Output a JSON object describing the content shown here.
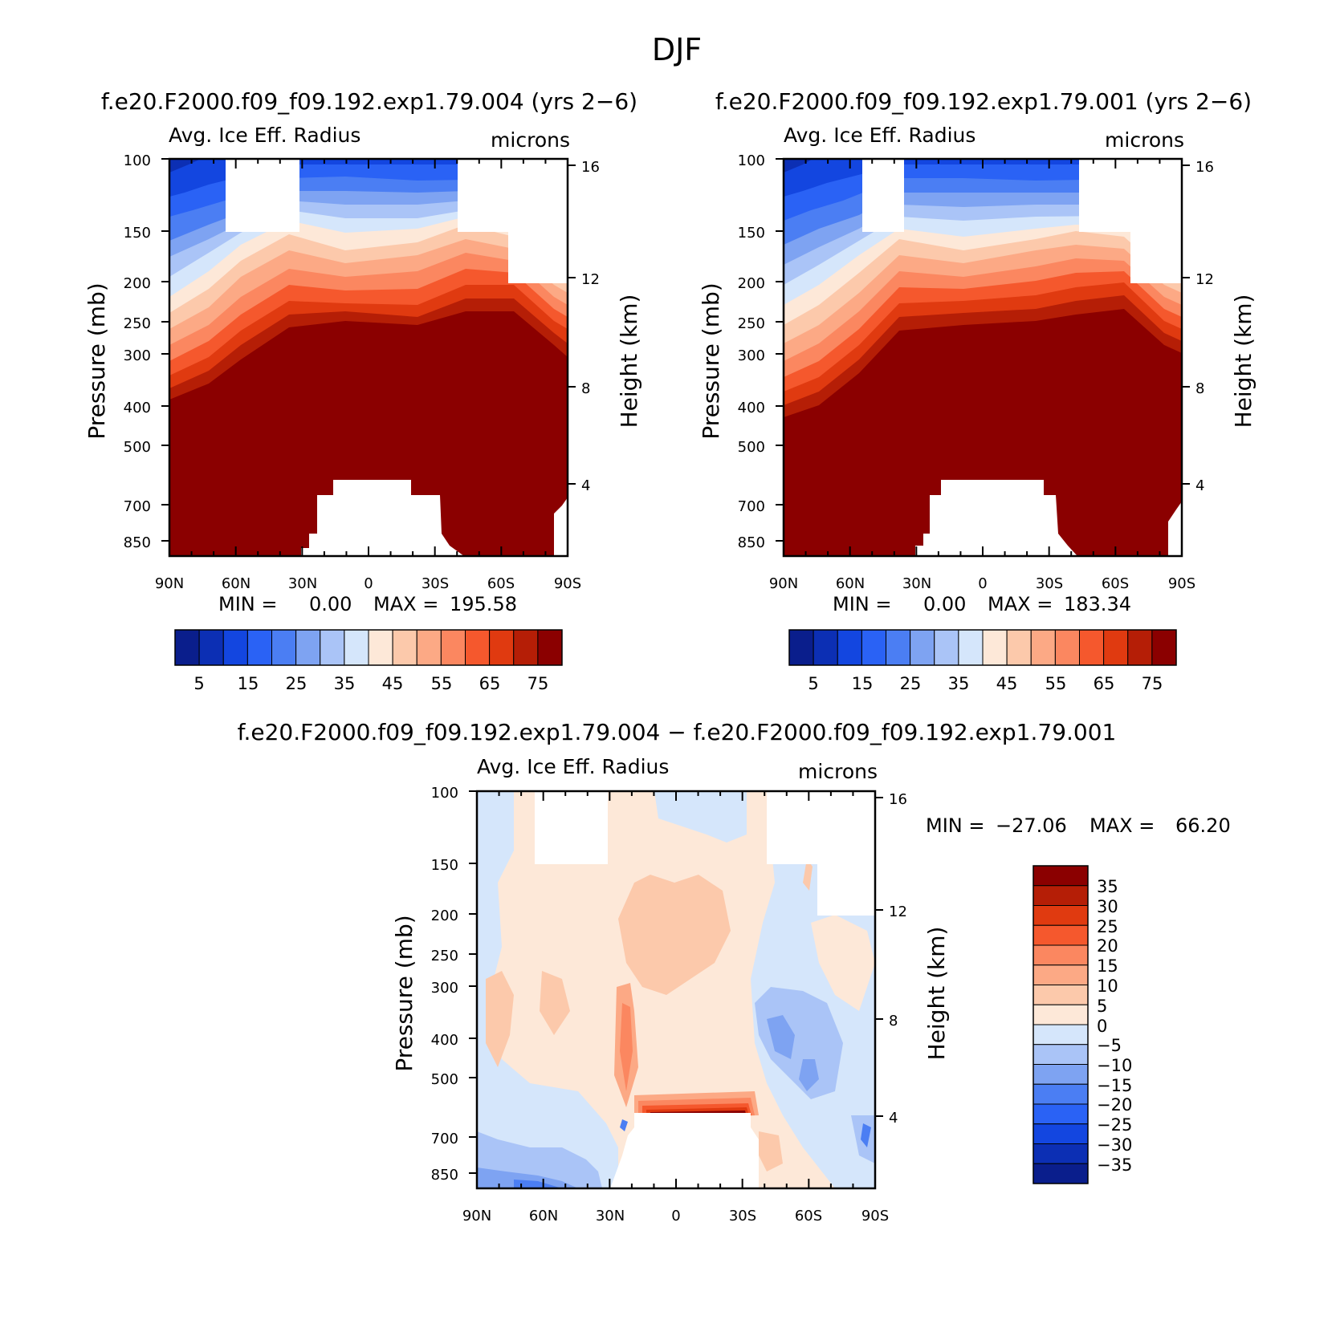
{
  "title": "DJF",
  "colors": {
    "abs_palette": [
      "#0a1e8c",
      "#0c2fb4",
      "#1346e0",
      "#2a62f5",
      "#4b7ef3",
      "#7ea3f2",
      "#aac4f7",
      "#d5e6fb",
      "#fde8d8",
      "#fcc9ab",
      "#fca985",
      "#fb8760",
      "#f5582d",
      "#e03a10",
      "#b51e06",
      "#8b0000"
    ],
    "diff_palette": [
      "#0a1e8c",
      "#0c2fb4",
      "#1346e0",
      "#2a62f5",
      "#4b7ef3",
      "#7ea3f2",
      "#aac4f7",
      "#d5e6fb",
      "#fde8d8",
      "#fcc9ab",
      "#fca985",
      "#fb8760",
      "#f5582d",
      "#e03a10",
      "#b51e06",
      "#8b0000"
    ]
  },
  "chart_data": [
    {
      "type": "heatmap",
      "panel": "top-left",
      "title": "f.e20.F2000.f09_f09.192.exp1.79.004 (yrs 2−6)",
      "variable": "Avg. Ice Eff. Radius",
      "units": "microns",
      "ylabel": "Pressure (mb)",
      "ylabel_right": "Height (km)",
      "x_ticks": [
        "90N",
        "60N",
        "30N",
        "0",
        "30S",
        "60S",
        "90S"
      ],
      "y_ticks": [
        "100",
        "150",
        "200",
        "250",
        "300",
        "400",
        "500",
        "700",
        "850"
      ],
      "y_ticks_right": [
        "16",
        "12",
        "8",
        "4"
      ],
      "min_label": "MIN =",
      "min_value": "0.00",
      "max_label": "MAX =",
      "max_value": "195.58",
      "colorbar_labels": [
        "5",
        "15",
        "25",
        "35",
        "45",
        "55",
        "65",
        "75"
      ],
      "contour_levels": [
        0,
        5,
        10,
        15,
        20,
        25,
        30,
        35,
        40,
        45,
        50,
        55,
        60,
        65,
        70,
        75
      ]
    },
    {
      "type": "heatmap",
      "panel": "top-right",
      "title": "f.e20.F2000.f09_f09.192.exp1.79.001 (yrs 2−6)",
      "variable": "Avg. Ice Eff. Radius",
      "units": "microns",
      "ylabel": "Pressure (mb)",
      "ylabel_right": "Height (km)",
      "x_ticks": [
        "90N",
        "60N",
        "30N",
        "0",
        "30S",
        "60S",
        "90S"
      ],
      "y_ticks": [
        "100",
        "150",
        "200",
        "250",
        "300",
        "400",
        "500",
        "700",
        "850"
      ],
      "y_ticks_right": [
        "16",
        "12",
        "8",
        "4"
      ],
      "min_label": "MIN =",
      "min_value": "0.00",
      "max_label": "MAX =",
      "max_value": "183.34",
      "colorbar_labels": [
        "5",
        "15",
        "25",
        "35",
        "45",
        "55",
        "65",
        "75"
      ],
      "contour_levels": [
        0,
        5,
        10,
        15,
        20,
        25,
        30,
        35,
        40,
        45,
        50,
        55,
        60,
        65,
        70,
        75
      ]
    },
    {
      "type": "heatmap",
      "panel": "bottom",
      "title": "f.e20.F2000.f09_f09.192.exp1.79.004 − f.e20.F2000.f09_f09.192.exp1.79.001",
      "variable": "Avg. Ice Eff. Radius",
      "units": "microns",
      "ylabel": "Pressure (mb)",
      "ylabel_right": "Height (km)",
      "x_ticks": [
        "90N",
        "60N",
        "30N",
        "0",
        "30S",
        "60S",
        "90S"
      ],
      "y_ticks": [
        "100",
        "150",
        "200",
        "250",
        "300",
        "400",
        "500",
        "700",
        "850"
      ],
      "y_ticks_right": [
        "16",
        "12",
        "8",
        "4"
      ],
      "min_label": "MIN =",
      "min_value": "−27.06",
      "max_label": "MAX =",
      "max_value": "66.20",
      "colorbar_labels": [
        "35",
        "30",
        "25",
        "20",
        "15",
        "10",
        "5",
        "0",
        "−5",
        "−10",
        "−15",
        "−20",
        "−25",
        "−30",
        "−35"
      ],
      "contour_levels": [
        -40,
        -35,
        -30,
        -25,
        -20,
        -15,
        -10,
        -5,
        0,
        5,
        10,
        15,
        20,
        25,
        30,
        35
      ]
    }
  ]
}
